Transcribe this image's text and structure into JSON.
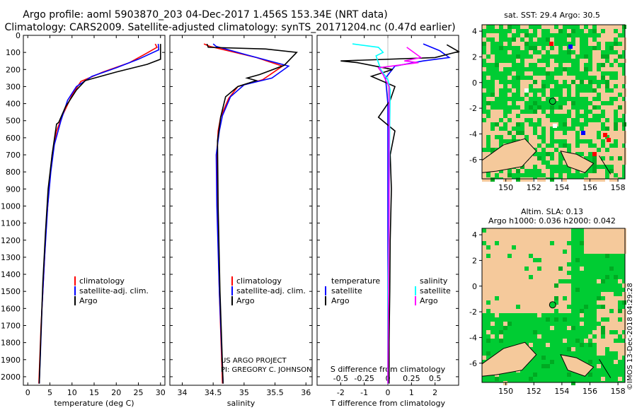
{
  "header": {
    "title1": "Argo profile: aoml 5903870_203 04-Dec-2017 1.456S 153.34E (NRT data)",
    "title2": "Climatology: CARS2009. Satellite-adjusted climatology: synTS_20171204.nc (0.47d earlier)"
  },
  "colors": {
    "clim": "#ff0000",
    "sat": "#0000ff",
    "argo": "#000000",
    "sal_sat": "#00ffff",
    "sal_argo": "#ff00ff",
    "land": "#f5c99b",
    "ocean_a": "#00cc33",
    "ocean_b": "#00aa22"
  },
  "depth_axis": {
    "ticks": [
      0,
      100,
      200,
      300,
      400,
      500,
      600,
      700,
      800,
      900,
      1000,
      1100,
      1200,
      1300,
      1400,
      1500,
      1600,
      1700,
      1800,
      1900,
      2000
    ],
    "ylim": [
      2050,
      0
    ]
  },
  "chart_data": [
    {
      "type": "line",
      "id": "temperature",
      "xlabel": "temperature (deg C)",
      "xlim": [
        -1,
        31
      ],
      "xticks": [
        0,
        5,
        10,
        15,
        20,
        25,
        30
      ],
      "series": [
        {
          "name": "climatology",
          "color": "#ff0000",
          "points": [
            [
              28.8,
              50
            ],
            [
              29.2,
              70
            ],
            [
              26.5,
              110
            ],
            [
              23,
              160
            ],
            [
              17,
              215
            ],
            [
              12,
              270
            ],
            [
              10,
              350
            ],
            [
              8,
              460
            ],
            [
              6.5,
              560
            ],
            [
              5.5,
              700
            ],
            [
              4.8,
              900
            ],
            [
              4.2,
              1100
            ],
            [
              3.6,
              1400
            ],
            [
              3,
              1700
            ],
            [
              2.5,
              2040
            ]
          ]
        },
        {
          "name": "satellite-adj. clim.",
          "color": "#0000ff",
          "points": [
            [
              29.5,
              50
            ],
            [
              29.6,
              85
            ],
            [
              25,
              140
            ],
            [
              20,
              190
            ],
            [
              14.5,
              240
            ],
            [
              11,
              300
            ],
            [
              9,
              380
            ],
            [
              7.5,
              500
            ],
            [
              6,
              640
            ],
            [
              5.2,
              800
            ],
            [
              4.5,
              1000
            ],
            [
              3.8,
              1300
            ],
            [
              3.2,
              1600
            ],
            [
              2.8,
              1900
            ],
            [
              2.6,
              2040
            ]
          ]
        },
        {
          "name": "Argo",
          "color": "#000000",
          "points": [
            [
              30,
              50
            ],
            [
              30,
              140
            ],
            [
              27,
              170
            ],
            [
              20,
              215
            ],
            [
              13,
              265
            ],
            [
              11,
              320
            ],
            [
              8.5,
              420
            ],
            [
              7,
              510
            ],
            [
              6.5,
              520
            ],
            [
              5.5,
              700
            ],
            [
              4.6,
              900
            ],
            [
              4,
              1150
            ],
            [
              3.4,
              1450
            ],
            [
              2.9,
              1800
            ],
            [
              2.6,
              2040
            ]
          ]
        }
      ],
      "legend": [
        "climatology",
        "satellite-adj. clim.",
        "Argo"
      ]
    },
    {
      "type": "line",
      "id": "salinity",
      "xlabel": "salinity",
      "xlim": [
        33.8,
        36.1
      ],
      "xticks": [
        34,
        34.5,
        35,
        35.5,
        36
      ],
      "series": [
        {
          "name": "climatology",
          "color": "#ff0000",
          "points": [
            [
              34.35,
              50
            ],
            [
              34.45,
              65
            ],
            [
              35.2,
              130
            ],
            [
              35.62,
              180
            ],
            [
              35.3,
              260
            ],
            [
              34.9,
              300
            ],
            [
              34.75,
              370
            ],
            [
              34.62,
              480
            ],
            [
              34.58,
              560
            ],
            [
              34.56,
              700
            ],
            [
              34.57,
              1000
            ],
            [
              34.6,
              1500
            ],
            [
              34.65,
              2040
            ]
          ]
        },
        {
          "name": "satellite-adj. clim.",
          "color": "#0000ff",
          "points": [
            [
              34.5,
              50
            ],
            [
              34.55,
              65
            ],
            [
              35.0,
              110
            ],
            [
              35.72,
              180
            ],
            [
              35.45,
              250
            ],
            [
              35.0,
              290
            ],
            [
              34.78,
              360
            ],
            [
              34.65,
              470
            ],
            [
              34.6,
              560
            ],
            [
              34.55,
              700
            ],
            [
              34.56,
              1000
            ],
            [
              34.6,
              1500
            ],
            [
              34.66,
              2040
            ]
          ]
        },
        {
          "name": "Argo",
          "color": "#000000",
          "points": [
            [
              34.4,
              50
            ],
            [
              34.42,
              70
            ],
            [
              35.35,
              80
            ],
            [
              35.85,
              100
            ],
            [
              35.65,
              175
            ],
            [
              35.25,
              230
            ],
            [
              35.05,
              250
            ],
            [
              35.2,
              265
            ],
            [
              34.9,
              300
            ],
            [
              34.7,
              360
            ],
            [
              34.62,
              480
            ],
            [
              34.57,
              620
            ],
            [
              34.58,
              1000
            ],
            [
              34.61,
              1500
            ],
            [
              34.66,
              2040
            ]
          ]
        }
      ],
      "legend": [
        "climatology",
        "satellite-adj. clim.",
        "Argo"
      ]
    },
    {
      "type": "line",
      "id": "difference",
      "xlabel": "T difference from climatology",
      "xlabel2": "S difference from climatology",
      "xlim": [
        -3,
        3
      ],
      "xticks_T": [
        -2,
        -1,
        0,
        1,
        2
      ],
      "xticks_S": [
        -0.5,
        -0.25,
        0,
        0.25,
        0.5
      ],
      "series": [
        {
          "name": "T satellite",
          "color": "#0000ff",
          "points": [
            [
              1.5,
              50
            ],
            [
              2.2,
              90
            ],
            [
              2.6,
              130
            ],
            [
              1.5,
              150
            ],
            [
              0.3,
              180
            ],
            [
              -0.1,
              250
            ],
            [
              0,
              400
            ],
            [
              0,
              700
            ],
            [
              0,
              2040
            ]
          ]
        },
        {
          "name": "T Argo",
          "color": "#000000",
          "points": [
            [
              2.5,
              55
            ],
            [
              3,
              95
            ],
            [
              2,
              130
            ],
            [
              -2,
              150
            ],
            [
              -1.3,
              160
            ],
            [
              0.2,
              200
            ],
            [
              -0.7,
              240
            ],
            [
              0.3,
              300
            ],
            [
              0.1,
              380
            ],
            [
              -0.4,
              480
            ],
            [
              0.3,
              560
            ],
            [
              0.1,
              700
            ],
            [
              0.15,
              900
            ],
            [
              0.1,
              1200
            ],
            [
              0.08,
              1500
            ],
            [
              0.05,
              1800
            ],
            [
              0.05,
              2040
            ]
          ]
        },
        {
          "name": "S satellite",
          "color": "#00ffff",
          "points": [
            [
              -1.5,
              50
            ],
            [
              -0.4,
              70
            ],
            [
              -0.2,
              100
            ],
            [
              -0.5,
              120
            ],
            [
              -0.3,
              200
            ],
            [
              0,
              260
            ],
            [
              0.1,
              320
            ],
            [
              0.08,
              500
            ],
            [
              0.05,
              1000
            ],
            [
              0,
              1500
            ],
            [
              0,
              2040
            ]
          ]
        },
        {
          "name": "S Argo",
          "color": "#ff00ff",
          "points": [
            [
              0.8,
              70
            ],
            [
              1.4,
              130
            ],
            [
              0.7,
              150
            ],
            [
              1.3,
              160
            ],
            [
              -0.4,
              190
            ],
            [
              -0.2,
              230
            ],
            [
              -0.1,
              260
            ],
            [
              0.05,
              300
            ],
            [
              0.05,
              1000
            ],
            [
              0,
              2040
            ]
          ]
        }
      ],
      "legend_T_title": "temperature",
      "legend_S_title": "salinity",
      "legend_T": [
        "satellite",
        "Argo"
      ],
      "legend_S": [
        "satellite",
        "Argo"
      ]
    }
  ],
  "map_top": {
    "title": "sat. SST: 29.4 Argo: 30.5",
    "yticks": [
      "4",
      "2",
      "0",
      "-2",
      "-4",
      "-6"
    ],
    "xticks": [
      "150",
      "152",
      "154",
      "156",
      "158"
    ]
  },
  "map_bottom": {
    "title1": "Altim. SLA: 0.13",
    "title2": "Argo h1000: 0.036 h2000: 0.042",
    "yticks": [
      "4",
      "2",
      "0",
      "-2",
      "-4",
      "-6"
    ],
    "xticks": [
      "150",
      "152",
      "154",
      "156",
      "158"
    ]
  },
  "credits": {
    "project": "US ARGO PROJECT",
    "pi": "PI: GREGORY C. JOHNSON",
    "imos": "©IMOS 13-Dec-2018 04:29:28"
  }
}
